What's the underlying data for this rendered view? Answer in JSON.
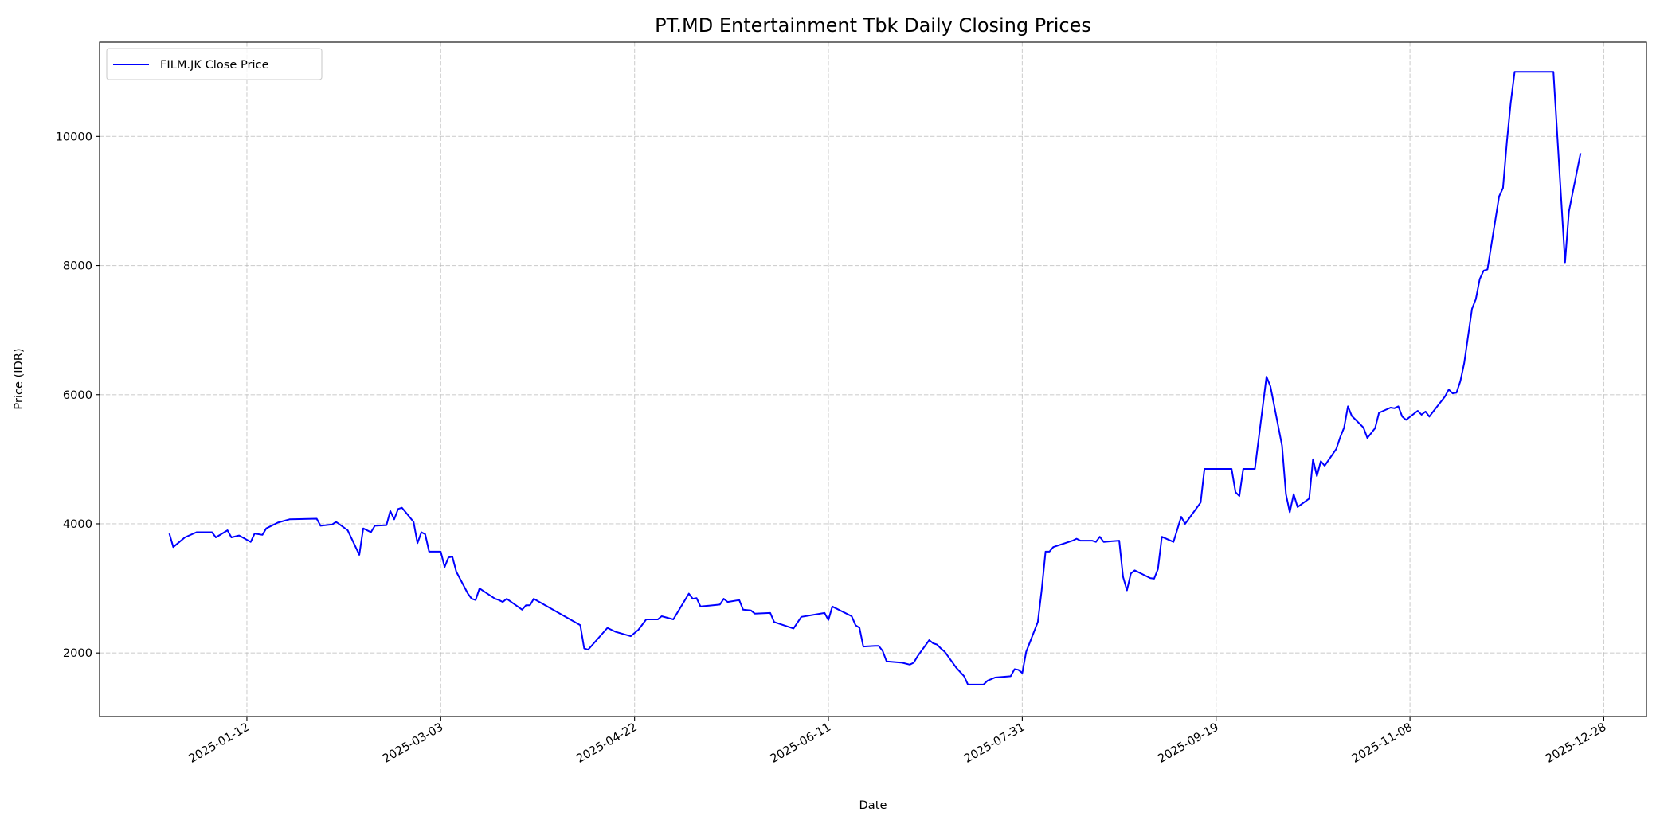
{
  "chart_data": {
    "type": "line",
    "title": "PT.MD Entertainment Tbk Daily Closing Prices",
    "xlabel": "Date",
    "ylabel": "Price (IDR)",
    "xlim": [
      "2024-12-05",
      "2026-01-08"
    ],
    "ylim": [
      1016,
      11459
    ],
    "xticks": [
      "2025-01-12",
      "2025-03-03",
      "2025-04-22",
      "2025-06-11",
      "2025-07-31",
      "2025-09-19",
      "2025-11-08",
      "2025-12-28"
    ],
    "yticks": [
      2000,
      4000,
      6000,
      8000,
      10000
    ],
    "grid": true,
    "legend_position": "top-left",
    "series": [
      {
        "name": "FILM.JK Close Price",
        "color": "#0000ff",
        "points": [
          [
            "2024-12-23",
            3850
          ],
          [
            "2024-12-24",
            3640
          ],
          [
            "2024-12-27",
            3790
          ],
          [
            "2024-12-30",
            3870
          ],
          [
            "2025-01-03",
            3870
          ],
          [
            "2025-01-04",
            3790
          ],
          [
            "2025-01-07",
            3900
          ],
          [
            "2025-01-08",
            3790
          ],
          [
            "2025-01-10",
            3820
          ],
          [
            "2025-01-13",
            3720
          ],
          [
            "2025-01-14",
            3850
          ],
          [
            "2025-01-16",
            3830
          ],
          [
            "2025-01-17",
            3930
          ],
          [
            "2025-01-20",
            4020
          ],
          [
            "2025-01-23",
            4070
          ],
          [
            "2025-01-30",
            4080
          ],
          [
            "2025-01-31",
            3970
          ],
          [
            "2025-02-03",
            3990
          ],
          [
            "2025-02-04",
            4030
          ],
          [
            "2025-02-07",
            3900
          ],
          [
            "2025-02-10",
            3520
          ],
          [
            "2025-02-11",
            3930
          ],
          [
            "2025-02-13",
            3870
          ],
          [
            "2025-02-14",
            3970
          ],
          [
            "2025-02-17",
            3980
          ],
          [
            "2025-02-18",
            4200
          ],
          [
            "2025-02-19",
            4070
          ],
          [
            "2025-02-20",
            4230
          ],
          [
            "2025-02-21",
            4250
          ],
          [
            "2025-02-24",
            4030
          ],
          [
            "2025-02-25",
            3700
          ],
          [
            "2025-02-26",
            3870
          ],
          [
            "2025-02-27",
            3840
          ],
          [
            "2025-02-28",
            3570
          ],
          [
            "2025-03-03",
            3570
          ],
          [
            "2025-03-04",
            3330
          ],
          [
            "2025-03-05",
            3480
          ],
          [
            "2025-03-06",
            3490
          ],
          [
            "2025-03-07",
            3260
          ],
          [
            "2025-03-10",
            2920
          ],
          [
            "2025-03-11",
            2840
          ],
          [
            "2025-03-12",
            2820
          ],
          [
            "2025-03-13",
            3000
          ],
          [
            "2025-03-17",
            2840
          ],
          [
            "2025-03-18",
            2820
          ],
          [
            "2025-03-19",
            2790
          ],
          [
            "2025-03-20",
            2840
          ],
          [
            "2025-03-24",
            2670
          ],
          [
            "2025-03-25",
            2740
          ],
          [
            "2025-03-26",
            2740
          ],
          [
            "2025-03-27",
            2840
          ],
          [
            "2025-04-08",
            2430
          ],
          [
            "2025-04-09",
            2070
          ],
          [
            "2025-04-10",
            2050
          ],
          [
            "2025-04-15",
            2390
          ],
          [
            "2025-04-17",
            2330
          ],
          [
            "2025-04-21",
            2260
          ],
          [
            "2025-04-23",
            2360
          ],
          [
            "2025-04-25",
            2520
          ],
          [
            "2025-04-28",
            2520
          ],
          [
            "2025-04-29",
            2570
          ],
          [
            "2025-05-02",
            2520
          ],
          [
            "2025-05-06",
            2920
          ],
          [
            "2025-05-07",
            2840
          ],
          [
            "2025-05-08",
            2850
          ],
          [
            "2025-05-09",
            2720
          ],
          [
            "2025-05-14",
            2750
          ],
          [
            "2025-05-15",
            2840
          ],
          [
            "2025-05-16",
            2790
          ],
          [
            "2025-05-19",
            2820
          ],
          [
            "2025-05-20",
            2670
          ],
          [
            "2025-05-22",
            2660
          ],
          [
            "2025-05-23",
            2610
          ],
          [
            "2025-05-27",
            2620
          ],
          [
            "2025-05-28",
            2480
          ],
          [
            "2025-06-02",
            2380
          ],
          [
            "2025-06-04",
            2560
          ],
          [
            "2025-06-10",
            2620
          ],
          [
            "2025-06-11",
            2510
          ],
          [
            "2025-06-12",
            2720
          ],
          [
            "2025-06-17",
            2570
          ],
          [
            "2025-06-18",
            2430
          ],
          [
            "2025-06-19",
            2390
          ],
          [
            "2025-06-20",
            2100
          ],
          [
            "2025-06-23",
            2110
          ],
          [
            "2025-06-24",
            2110
          ],
          [
            "2025-06-25",
            2030
          ],
          [
            "2025-06-26",
            1870
          ],
          [
            "2025-06-30",
            1850
          ],
          [
            "2025-07-02",
            1820
          ],
          [
            "2025-07-03",
            1850
          ],
          [
            "2025-07-04",
            1950
          ],
          [
            "2025-07-07",
            2200
          ],
          [
            "2025-07-08",
            2150
          ],
          [
            "2025-07-09",
            2130
          ],
          [
            "2025-07-10",
            2070
          ],
          [
            "2025-07-11",
            2020
          ],
          [
            "2025-07-14",
            1770
          ],
          [
            "2025-07-16",
            1640
          ],
          [
            "2025-07-17",
            1510
          ],
          [
            "2025-07-21",
            1510
          ],
          [
            "2025-07-22",
            1570
          ],
          [
            "2025-07-24",
            1620
          ],
          [
            "2025-07-28",
            1640
          ],
          [
            "2025-07-29",
            1750
          ],
          [
            "2025-07-30",
            1740
          ],
          [
            "2025-07-31",
            1690
          ],
          [
            "2025-08-01",
            2020
          ],
          [
            "2025-08-04",
            2480
          ],
          [
            "2025-08-05",
            2970
          ],
          [
            "2025-08-06",
            3570
          ],
          [
            "2025-08-07",
            3570
          ],
          [
            "2025-08-08",
            3640
          ],
          [
            "2025-08-11",
            3700
          ],
          [
            "2025-08-13",
            3740
          ],
          [
            "2025-08-14",
            3770
          ],
          [
            "2025-08-15",
            3740
          ],
          [
            "2025-08-18",
            3740
          ],
          [
            "2025-08-19",
            3720
          ],
          [
            "2025-08-20",
            3800
          ],
          [
            "2025-08-21",
            3720
          ],
          [
            "2025-08-25",
            3740
          ],
          [
            "2025-08-26",
            3180
          ],
          [
            "2025-08-27",
            2970
          ],
          [
            "2025-08-28",
            3230
          ],
          [
            "2025-08-29",
            3280
          ],
          [
            "2025-09-02",
            3160
          ],
          [
            "2025-09-03",
            3150
          ],
          [
            "2025-09-04",
            3300
          ],
          [
            "2025-09-05",
            3800
          ],
          [
            "2025-09-08",
            3720
          ],
          [
            "2025-09-10",
            4110
          ],
          [
            "2025-09-11",
            4000
          ],
          [
            "2025-09-15",
            4330
          ],
          [
            "2025-09-16",
            4850
          ],
          [
            "2025-09-23",
            4850
          ],
          [
            "2025-09-24",
            4490
          ],
          [
            "2025-09-25",
            4430
          ],
          [
            "2025-09-26",
            4850
          ],
          [
            "2025-09-29",
            4850
          ],
          [
            "2025-10-02",
            6280
          ],
          [
            "2025-10-03",
            6130
          ],
          [
            "2025-10-06",
            5210
          ],
          [
            "2025-10-07",
            4460
          ],
          [
            "2025-10-08",
            4180
          ],
          [
            "2025-10-09",
            4460
          ],
          [
            "2025-10-10",
            4260
          ],
          [
            "2025-10-13",
            4390
          ],
          [
            "2025-10-14",
            5000
          ],
          [
            "2025-10-15",
            4740
          ],
          [
            "2025-10-16",
            4970
          ],
          [
            "2025-10-17",
            4900
          ],
          [
            "2025-10-20",
            5160
          ],
          [
            "2025-10-21",
            5340
          ],
          [
            "2025-10-22",
            5490
          ],
          [
            "2025-10-23",
            5820
          ],
          [
            "2025-10-24",
            5670
          ],
          [
            "2025-10-27",
            5490
          ],
          [
            "2025-10-28",
            5330
          ],
          [
            "2025-10-30",
            5480
          ],
          [
            "2025-10-31",
            5720
          ],
          [
            "2025-11-03",
            5800
          ],
          [
            "2025-11-04",
            5790
          ],
          [
            "2025-11-05",
            5820
          ],
          [
            "2025-11-06",
            5660
          ],
          [
            "2025-11-07",
            5610
          ],
          [
            "2025-11-10",
            5750
          ],
          [
            "2025-11-11",
            5690
          ],
          [
            "2025-11-12",
            5740
          ],
          [
            "2025-11-13",
            5660
          ],
          [
            "2025-11-14",
            5740
          ],
          [
            "2025-11-17",
            5970
          ],
          [
            "2025-11-18",
            6080
          ],
          [
            "2025-11-19",
            6020
          ],
          [
            "2025-11-20",
            6030
          ],
          [
            "2025-11-21",
            6210
          ],
          [
            "2025-11-22",
            6490
          ],
          [
            "2025-11-24",
            7330
          ],
          [
            "2025-11-25",
            7480
          ],
          [
            "2025-11-26",
            7790
          ],
          [
            "2025-11-27",
            7920
          ],
          [
            "2025-11-28",
            7940
          ],
          [
            "2025-12-01",
            9070
          ],
          [
            "2025-12-02",
            9200
          ],
          [
            "2025-12-03",
            9920
          ],
          [
            "2025-12-04",
            10520
          ],
          [
            "2025-12-05",
            11000
          ],
          [
            "2025-12-15",
            11000
          ],
          [
            "2025-12-18",
            8050
          ],
          [
            "2025-12-19",
            8840
          ],
          [
            "2025-12-22",
            9740
          ]
        ]
      }
    ]
  }
}
